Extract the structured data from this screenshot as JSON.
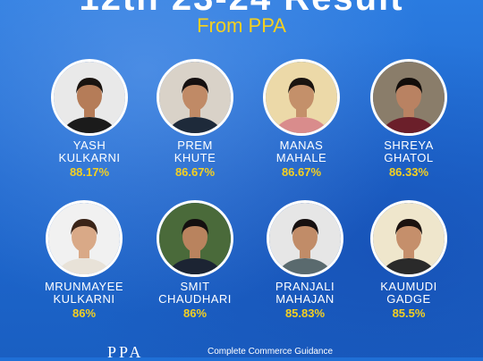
{
  "header": {
    "title": "12th 23-24 Result",
    "subtitle": "From PPA"
  },
  "students": [
    {
      "first": "YASH",
      "last": "KULKARNI",
      "score": "88.17%",
      "bg": "#e9e9e9",
      "shirt": "#1b1b1b",
      "skin": "#b57c58",
      "hair": "#1a1410"
    },
    {
      "first": "PREM",
      "last": "KHUTE",
      "score": "86.67%",
      "bg": "#d9d2c8",
      "shirt": "#1e2a3a",
      "skin": "#c08a66",
      "hair": "#151010"
    },
    {
      "first": "MANAS",
      "last": "MAHALE",
      "score": "86.67%",
      "bg": "#ecd9a8",
      "shirt": "#d98c8c",
      "skin": "#c4906a",
      "hair": "#1a1410"
    },
    {
      "first": "SHREYA",
      "last": "GHATOL",
      "score": "86.33%",
      "bg": "#8a7d6a",
      "shirt": "#6b1f2a",
      "skin": "#b98262",
      "hair": "#120d0a"
    },
    {
      "first": "MRUNMAYEE",
      "last": "KULKARNI",
      "score": "86%",
      "bg": "#f1f1f1",
      "shirt": "#e8e2d8",
      "skin": "#d9a987",
      "hair": "#3a2418"
    },
    {
      "first": "SMIT",
      "last": "CHAUDHARI",
      "score": "86%",
      "bg": "#4a6a3a",
      "shirt": "#1c2433",
      "skin": "#b9835e",
      "hair": "#141010"
    },
    {
      "first": "PRANJALI",
      "last": "MAHAJAN",
      "score": "85.83%",
      "bg": "#e6e6e6",
      "shirt": "#5a6a6e",
      "skin": "#c18c68",
      "hair": "#161010"
    },
    {
      "first": "KAUMUDI",
      "last": "GADGE",
      "score": "85.5%",
      "bg": "#efe6cc",
      "shirt": "#2a2a2a",
      "skin": "#c58f6b",
      "hair": "#1a1210"
    }
  ],
  "footer": {
    "logo": "PPA",
    "tagline": "Complete Commerce Guidance"
  }
}
